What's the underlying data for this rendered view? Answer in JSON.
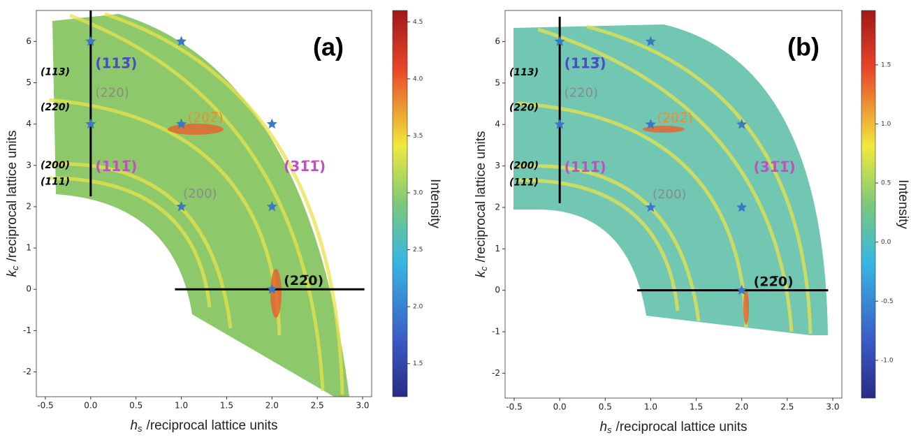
{
  "chart_data": [
    {
      "type": "scatter",
      "panel_label": "(a)",
      "xlabel": {
        "symbol": "h",
        "subscript": "s",
        "text": "/reciprocal lattice units"
      },
      "ylabel": {
        "symbol": "k",
        "subscript": "c",
        "text": "/reciprocal lattice units"
      },
      "xlim": [
        -0.6,
        3.1
      ],
      "xticks": [
        -0.5,
        {
          "value": 0,
          "label": "0.0"
        },
        0.5,
        {
          "value": 1,
          "label": "1.0"
        },
        1.5,
        {
          "value": 2,
          "label": "2.0"
        },
        2.5,
        {
          "value": 3,
          "label": "3.0"
        }
      ],
      "ylim": [
        -2.6,
        6.75
      ],
      "yticks": [
        -2,
        -1,
        0,
        1,
        2,
        3,
        4,
        5,
        6
      ],
      "x": [
        0,
        1,
        0,
        1,
        2,
        1,
        2,
        2
      ],
      "values": [
        6,
        6,
        4,
        4,
        4,
        2,
        2,
        0
      ],
      "color": "#3b78c4",
      "annotations": [
        {
          "text": "(113̅)",
          "color": "#4b4bc8"
        },
        {
          "text": "(220)",
          "color": "#8a8a8a"
        },
        {
          "text": "(202̅)",
          "color": "#f08c28"
        },
        {
          "text": "(111̅)",
          "color": "#c050c0"
        },
        {
          "text": "(200)",
          "color": "#8a8a8a"
        },
        {
          "text": "(31̅1̅)",
          "color": "#c050c0"
        },
        {
          "text": "(22̅0)",
          "color": "#111111"
        }
      ],
      "side_labels": [
        "(113)",
        "(220)",
        "(200)",
        "(111)"
      ],
      "colorbar": {
        "label": "Intensity",
        "lim": [
          1.21,
          4.6
        ],
        "ticks": [
          1.5,
          {
            "value": 2,
            "label": "2.0"
          },
          2.5,
          {
            "value": 3,
            "label": "3.0"
          },
          3.5,
          {
            "value": 4,
            "label": "4.0"
          },
          4.5
        ]
      }
    },
    {
      "type": "scatter",
      "panel_label": "(b)",
      "xlabel": {
        "symbol": "h",
        "subscript": "s",
        "text": "/reciprocal lattice units"
      },
      "ylabel": {
        "symbol": "k",
        "subscript": "c",
        "text": "/reciprocal lattice units"
      },
      "xlim": [
        -0.6,
        3.1
      ],
      "xticks": [
        -0.5,
        {
          "value": 0,
          "label": "0.0"
        },
        0.5,
        {
          "value": 1,
          "label": "1.0"
        },
        1.5,
        {
          "value": 2,
          "label": "2.0"
        },
        2.5,
        {
          "value": 3,
          "label": "3.0"
        }
      ],
      "ylim": [
        -2.6,
        6.75
      ],
      "yticks": [
        -2,
        -1,
        0,
        1,
        2,
        3,
        4,
        5,
        6
      ],
      "x": [
        0,
        1,
        0,
        1,
        2,
        1,
        2,
        2
      ],
      "values": [
        6,
        6,
        4,
        4,
        4,
        2,
        2,
        0
      ],
      "color": "#3b78c4",
      "annotations": [
        {
          "text": "(113̅)",
          "color": "#4b4bc8"
        },
        {
          "text": "(220)",
          "color": "#8a8a8a"
        },
        {
          "text": "(202̅)",
          "color": "#f08c28"
        },
        {
          "text": "(111̅)",
          "color": "#c050c0"
        },
        {
          "text": "(200)",
          "color": "#8a8a8a"
        },
        {
          "text": "(31̅1̅)",
          "color": "#c050c0"
        },
        {
          "text": "(22̅0)",
          "color": "#111111"
        }
      ],
      "side_labels": [
        "(113)",
        "(220)",
        "(200)",
        "(111)"
      ],
      "colorbar": {
        "label": "Intensity",
        "lim": [
          -1.32,
          1.96
        ],
        "ticks": [
          {
            "value": -1,
            "label": "-1.0"
          },
          -0.5,
          {
            "value": 0,
            "label": "0.0"
          },
          0.5,
          {
            "value": 1,
            "label": "1.0"
          },
          1.5
        ]
      }
    }
  ]
}
